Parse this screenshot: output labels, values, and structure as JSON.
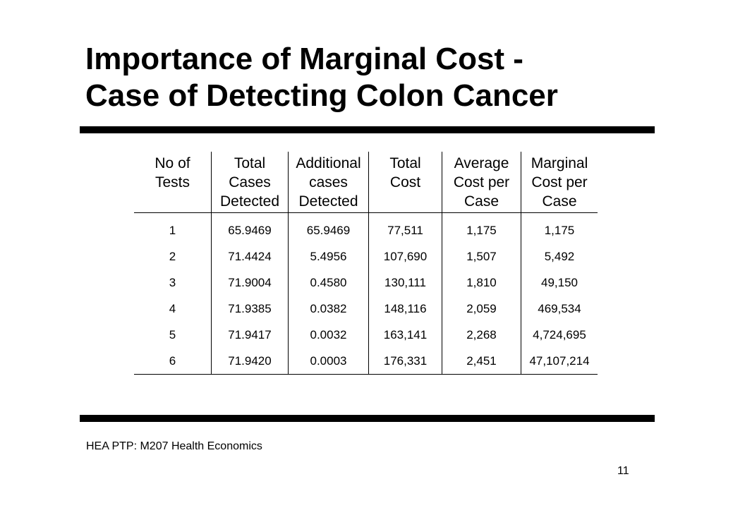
{
  "slide": {
    "title_line1": "Importance of Marginal Cost -",
    "title_line2": "Case of Detecting Colon Cancer",
    "footer": "HEA PTP: M207 Health Economics",
    "page_number": "11"
  },
  "table": {
    "headers": [
      [
        "No of",
        "Tests"
      ],
      [
        "Total",
        "Cases",
        "Detected"
      ],
      [
        "Additional",
        "cases",
        "Detected"
      ],
      [
        "Total",
        "Cost"
      ],
      [
        "Average",
        "Cost per",
        "Case"
      ],
      [
        "Marginal",
        "Cost per",
        "Case"
      ]
    ],
    "rows": [
      [
        "1",
        "65.9469",
        "65.9469",
        "77,511",
        "1,175",
        "1,175"
      ],
      [
        "2",
        "71.4424",
        "5.4956",
        "107,690",
        "1,507",
        "5,492"
      ],
      [
        "3",
        "71.9004",
        "0.4580",
        "130,111",
        "1,810",
        "49,150"
      ],
      [
        "4",
        "71.9385",
        "0.0382",
        "148,116",
        "2,059",
        "469,534"
      ],
      [
        "5",
        "71.9417",
        "0.0032",
        "163,141",
        "2,268",
        "4,724,695"
      ],
      [
        "6",
        "71.9420",
        "0.0003",
        "176,331",
        "2,451",
        "47,107,214"
      ]
    ]
  }
}
